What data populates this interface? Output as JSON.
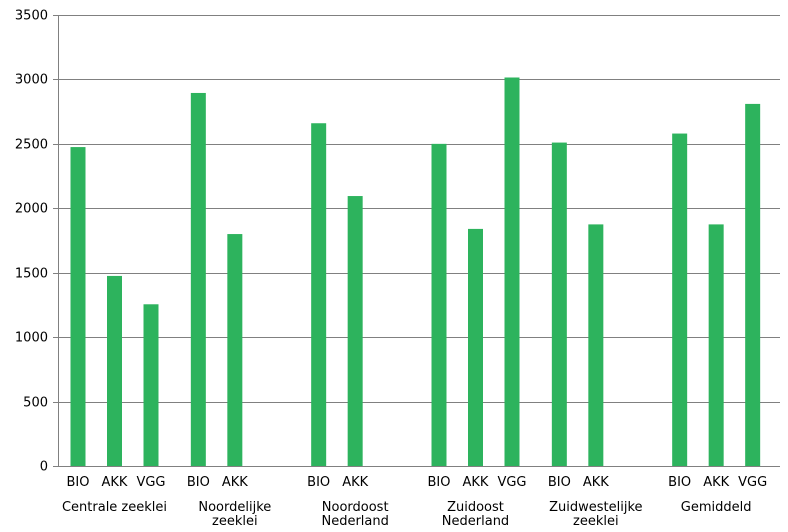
{
  "chart_data": {
    "type": "bar",
    "title": "",
    "xlabel": "",
    "ylabel": "",
    "ylim": [
      0,
      3500
    ],
    "yticks": [
      0,
      500,
      1000,
      1500,
      2000,
      2500,
      3000,
      3500
    ],
    "grid": "horizontal",
    "bar_color": "#2db35d",
    "grid_color": "#808080",
    "groups": [
      {
        "label_lines": [
          "Centrale zeeklei"
        ],
        "bars": [
          {
            "category": "BIO",
            "value": 2475
          },
          {
            "category": "AKK",
            "value": 1475
          },
          {
            "category": "VGG",
            "value": 1255
          }
        ]
      },
      {
        "label_lines": [
          "Noordelijke",
          "zeeklei"
        ],
        "bars": [
          {
            "category": "BIO",
            "value": 2895
          },
          {
            "category": "AKK",
            "value": 1800
          }
        ]
      },
      {
        "label_lines": [
          "Noordoost",
          "Nederland"
        ],
        "bars": [
          {
            "category": "BIO",
            "value": 2660
          },
          {
            "category": "AKK",
            "value": 2095
          }
        ]
      },
      {
        "label_lines": [
          "Zuidoost",
          "Nederland"
        ],
        "bars": [
          {
            "category": "BIO",
            "value": 2500
          },
          {
            "category": "AKK",
            "value": 1840
          },
          {
            "category": "VGG",
            "value": 3015
          }
        ]
      },
      {
        "label_lines": [
          "Zuidwestelijke",
          "zeeklei"
        ],
        "bars": [
          {
            "category": "BIO",
            "value": 2510
          },
          {
            "category": "AKK",
            "value": 1875
          }
        ]
      },
      {
        "label_lines": [
          "Gemiddeld"
        ],
        "bars": [
          {
            "category": "BIO",
            "value": 2580
          },
          {
            "category": "AKK",
            "value": 1875
          },
          {
            "category": "VGG",
            "value": 2810
          }
        ]
      }
    ]
  }
}
